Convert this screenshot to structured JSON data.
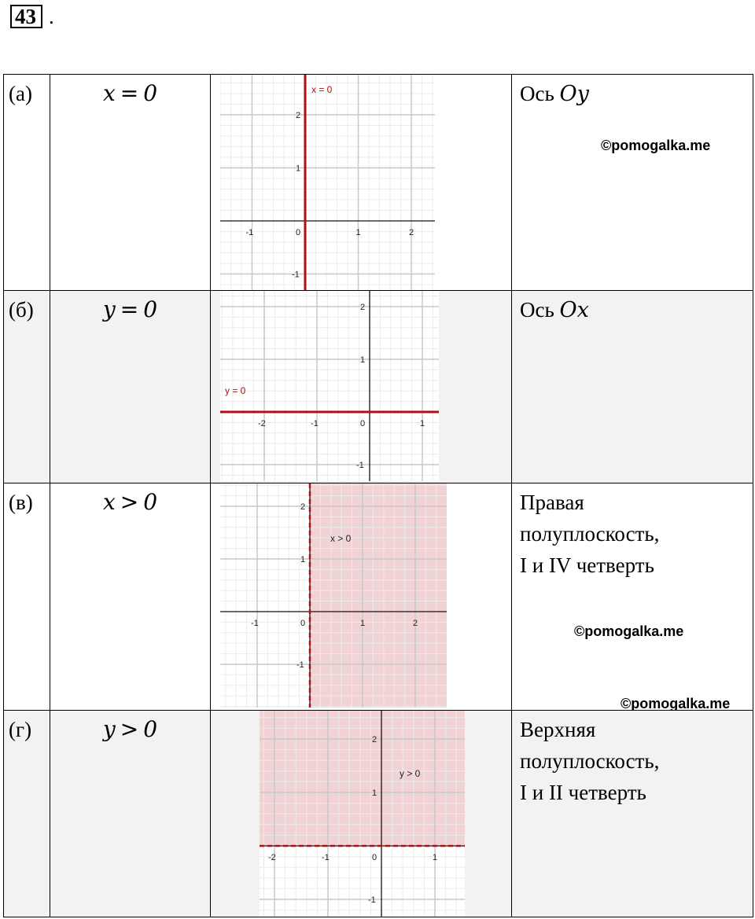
{
  "task": {
    "number": "43",
    "dot": "."
  },
  "rows": [
    {
      "label": "(а)",
      "formula_lhs": "x",
      "formula_op": "=",
      "formula_rhs": "0",
      "desc_prefix": "Ось ",
      "desc_axis": "Oy",
      "desc_lines": [],
      "graph": {
        "line_label": "x = 0",
        "x_ticks": [
          "-1",
          "0",
          "1",
          "2"
        ],
        "y_ticks": [
          "2",
          "1",
          "-1"
        ]
      }
    },
    {
      "label": "(б)",
      "formula_lhs": "y",
      "formula_op": "=",
      "formula_rhs": "0",
      "desc_prefix": "Ось ",
      "desc_axis": "Ox",
      "desc_lines": [],
      "graph": {
        "line_label": "y = 0",
        "x_ticks": [
          "-2",
          "-1",
          "0",
          "1"
        ],
        "y_ticks": [
          "2",
          "1",
          "-1"
        ]
      }
    },
    {
      "label": "(в)",
      "formula_lhs": "x",
      "formula_op": ">",
      "formula_rhs": "0",
      "desc_lines": [
        "Правая",
        "полуплоскость,",
        "I и IV четверть"
      ],
      "graph": {
        "region_label": "x > 0",
        "x_ticks": [
          "-1",
          "0",
          "1",
          "2"
        ],
        "y_ticks": [
          "2",
          "1",
          "-1"
        ]
      }
    },
    {
      "label": "(г)",
      "formula_lhs": "y",
      "formula_op": ">",
      "formula_rhs": "0",
      "desc_lines": [
        "Верхняя",
        "полуплоскость,",
        "I и II четверть"
      ],
      "graph": {
        "region_label": "y > 0",
        "x_ticks": [
          "-2",
          "-1",
          "0",
          "1"
        ],
        "y_ticks": [
          "2",
          "1",
          "-1"
        ]
      }
    }
  ],
  "watermarks": {
    "text": "©pomogalka.me"
  },
  "colors": {
    "line": "#b01010",
    "fill": "#f2d3d5",
    "grid_major": "#c8c8c8",
    "grid_minor": "#ebebeb",
    "axis": "#111111"
  }
}
